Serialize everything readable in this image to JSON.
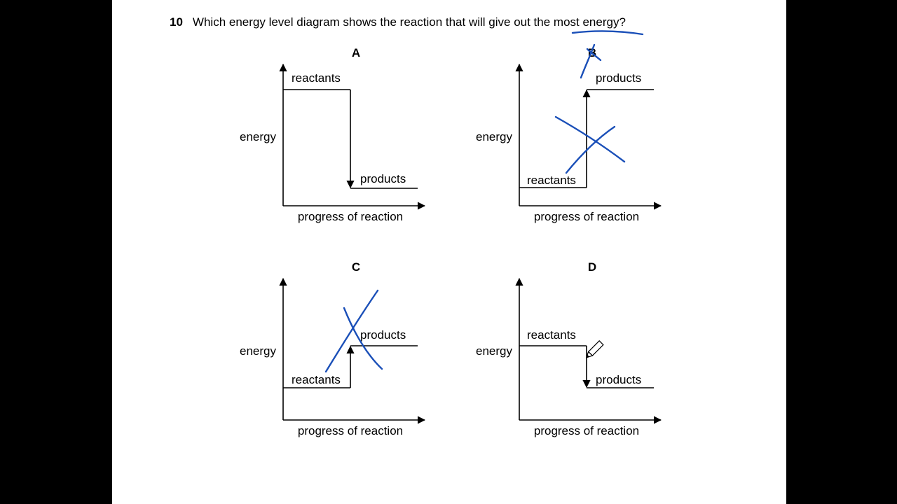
{
  "question": {
    "number": "10",
    "text_before": "Which energy level diagram shows the reaction that will give out the ",
    "text_underlined": "most energy",
    "text_after": "?"
  },
  "diagrams": {
    "A": {
      "option": "A",
      "y_label": "energy",
      "x_label": "progress of reaction",
      "reactants": "reactants",
      "products": "products"
    },
    "B": {
      "option": "B",
      "y_label": "energy",
      "x_label": "progress of reaction",
      "reactants": "reactants",
      "products": "products"
    },
    "C": {
      "option": "C",
      "y_label": "energy",
      "x_label": "progress of reaction",
      "reactants": "reactants",
      "products": "products"
    },
    "D": {
      "option": "D",
      "y_label": "energy",
      "x_label": "progress of reaction",
      "reactants": "reactants",
      "products": "products"
    }
  },
  "annotations": {
    "ink_color": "#1a4fb8",
    "crossed_out_options": [
      "B",
      "C"
    ],
    "cursor_icon": "pencil-icon"
  }
}
